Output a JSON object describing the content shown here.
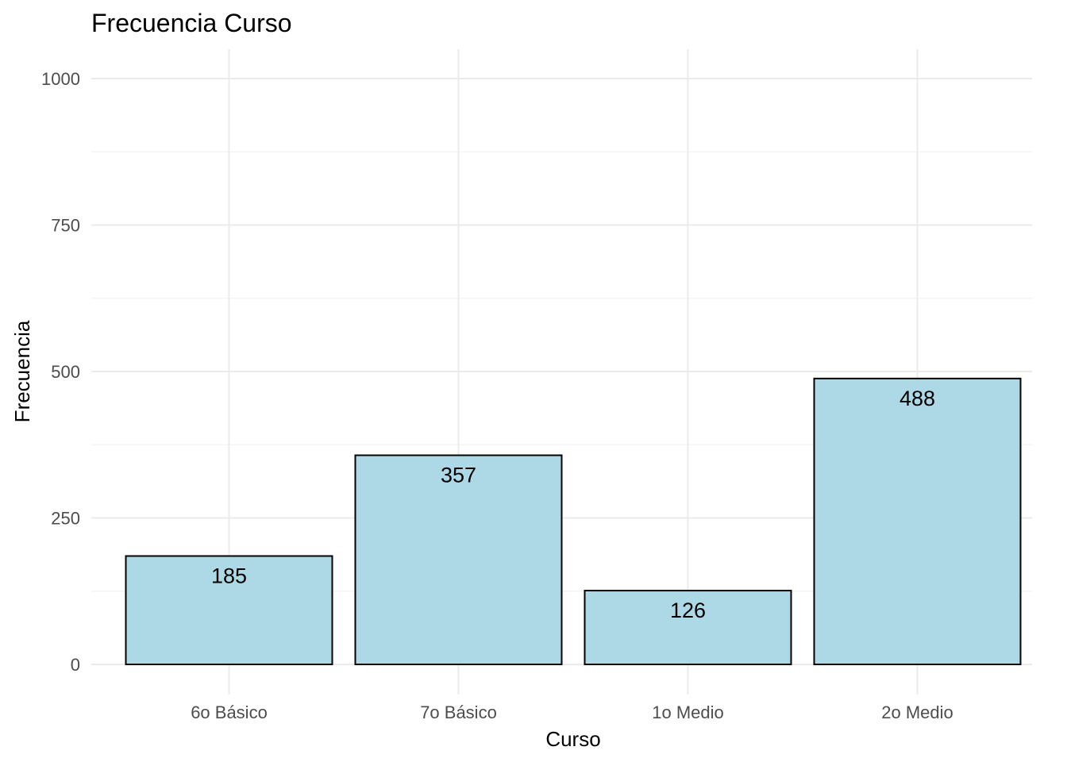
{
  "chart_data": {
    "type": "bar",
    "title": "Frecuencia Curso",
    "xlabel": "Curso",
    "ylabel": "Frecuencia",
    "categories": [
      "6o Básico",
      "7o Básico",
      "1o Medio",
      "2o Medio"
    ],
    "values": [
      185,
      357,
      126,
      488
    ],
    "data_labels": [
      "185",
      "357",
      "126",
      "488"
    ],
    "y_ticks": [
      0,
      250,
      500,
      750,
      1000
    ],
    "y_tick_labels": [
      "0",
      "250",
      "500",
      "750",
      "1000"
    ],
    "ylim": [
      0,
      1000
    ],
    "grid": true,
    "legend": "none",
    "colors": {
      "bar_fill": "#add8e6",
      "bar_stroke": "#000000"
    }
  }
}
